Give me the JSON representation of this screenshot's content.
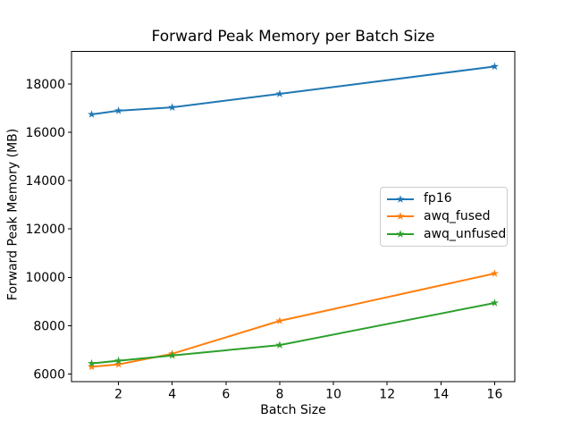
{
  "figure": {
    "background": "#ffffff",
    "text_color": "#000000",
    "axis_color": "#000000",
    "legend_border_color": "#cccccc"
  },
  "chart_data": {
    "type": "line",
    "title": "Forward Peak Memory per Batch Size",
    "xlabel": "Batch Size",
    "ylabel": "Forward Peak Memory (MB)",
    "x": [
      1,
      2,
      4,
      8,
      16
    ],
    "series": [
      {
        "name": "fp16",
        "color": "#1f77b4",
        "marker": "star",
        "values": [
          16740,
          16890,
          17030,
          17590,
          18720
        ]
      },
      {
        "name": "awq_fused",
        "color": "#ff7f0e",
        "marker": "star",
        "values": [
          6300,
          6400,
          6840,
          8200,
          10160
        ]
      },
      {
        "name": "awq_unfused",
        "color": "#2ca02c",
        "marker": "star",
        "values": [
          6440,
          6550,
          6770,
          7200,
          8940
        ]
      }
    ],
    "xticks": [
      2,
      4,
      6,
      8,
      10,
      12,
      14,
      16
    ],
    "yticks": [
      6000,
      8000,
      10000,
      12000,
      14000,
      16000,
      18000
    ],
    "xlim": [
      0.25,
      16.75
    ],
    "ylim": [
      5679,
      19341
    ],
    "grid": false,
    "legend": {
      "position": "center-right",
      "entries": [
        "fp16",
        "awq_fused",
        "awq_unfused"
      ]
    }
  }
}
